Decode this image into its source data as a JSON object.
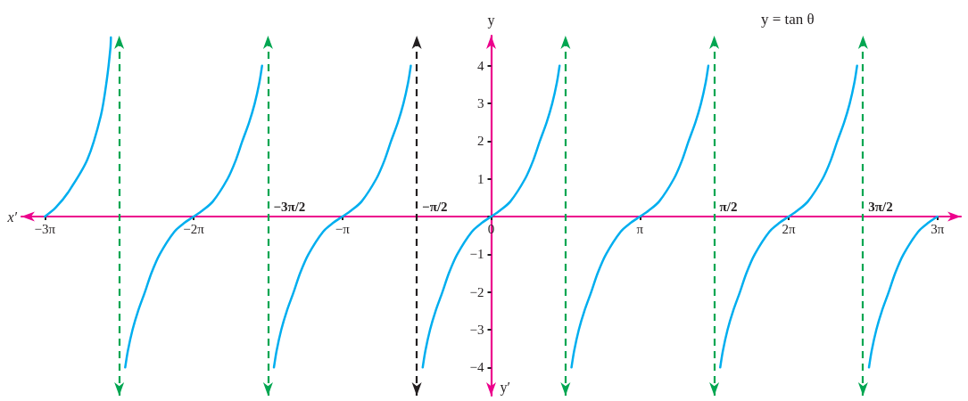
{
  "chart_data": {
    "type": "line",
    "title": "y = tan θ",
    "xlabel": "x′",
    "ylabel": "y",
    "annotations": [
      "y′"
    ],
    "xlim": [
      -9.92,
      9.92
    ],
    "ylim": [
      -4.75,
      4.8
    ],
    "xticks": [
      {
        "value": -9.425,
        "label": "−3π"
      },
      {
        "value": -6.283,
        "label": "−2π"
      },
      {
        "value": -3.142,
        "label": "−π"
      },
      {
        "value": 0,
        "label": "0"
      },
      {
        "value": 3.142,
        "label": "π"
      },
      {
        "value": 6.283,
        "label": "2π"
      },
      {
        "value": 9.425,
        "label": "3π"
      }
    ],
    "yticks": [
      {
        "value": -4,
        "label": "−4"
      },
      {
        "value": -3,
        "label": "−3"
      },
      {
        "value": -2,
        "label": "−2"
      },
      {
        "value": -1,
        "label": "−1"
      },
      {
        "value": 0,
        "label": null
      },
      1,
      2,
      3,
      4
    ],
    "grid": false,
    "marker": "none",
    "line_style": "solid",
    "ref_lines": [
      {
        "axis": "x",
        "value": -7.854,
        "color": "#00a651",
        "line_style": "dashed"
      },
      {
        "axis": "x",
        "value": -4.712,
        "label": "−3π/2",
        "color": "#00a651",
        "line_style": "dashed"
      },
      {
        "axis": "x",
        "value": -1.571,
        "label": "−π/2",
        "color": "#231f20",
        "line_style": "dashed"
      },
      {
        "axis": "x",
        "value": 1.571,
        "color": "#00a651",
        "line_style": "dashed"
      },
      {
        "axis": "x",
        "value": 4.712,
        "label": "π/2",
        "color": "#00a651",
        "line_style": "dashed"
      },
      {
        "axis": "x",
        "value": 7.854,
        "label": "3π/2",
        "color": "#00a651",
        "line_style": "dashed"
      }
    ],
    "series": [
      {
        "color": "#00aeef",
        "x": [
          -9.425,
          -9.195,
          -8.935,
          -8.531,
          -8.242,
          -8.116,
          -8.04,
          -8.03
        ],
        "values": [
          0,
          0.24,
          0.64,
          1.5,
          2.68,
          3.63,
          4.47,
          4.75
        ]
      },
      {
        "color": "#00aeef",
        "x": [
          -7.728,
          -7.672,
          -7.573,
          -7.455,
          -7.311,
          -7.175,
          -6.999,
          -6.689,
          -6.47,
          -6.283,
          -6.096,
          -5.877,
          -5.567,
          -5.391,
          -5.255,
          -5.111,
          -4.993,
          -4.894,
          -4.838
        ],
        "values": [
          -4,
          -3.56,
          -3,
          -2.5,
          -2,
          -1.5,
          -1,
          -0.4,
          -0.16,
          0,
          0.16,
          0.4,
          1,
          1.5,
          2,
          2.5,
          3,
          3.56,
          4
        ]
      },
      {
        "color": "#00aeef",
        "x": [
          -4.587,
          -4.531,
          -4.432,
          -4.314,
          -4.17,
          -4.034,
          -3.858,
          -3.548,
          -3.329,
          -3.142,
          -2.955,
          -2.736,
          -2.426,
          -2.25,
          -2.114,
          -1.97,
          -1.852,
          -1.753,
          -1.697
        ],
        "values": [
          -4,
          -3.56,
          -3,
          -2.5,
          -2,
          -1.5,
          -1,
          -0.4,
          -0.16,
          0,
          0.16,
          0.4,
          1,
          1.5,
          2,
          2.5,
          3,
          3.56,
          4
        ]
      },
      {
        "color": "#00aeef",
        "x": [
          -1.445,
          -1.389,
          -1.29,
          -1.172,
          -1.028,
          -0.892,
          -0.716,
          -0.406,
          -0.187,
          0,
          0.187,
          0.406,
          0.716,
          0.892,
          1.028,
          1.172,
          1.29,
          1.389,
          1.445
        ],
        "values": [
          -4,
          -3.56,
          -3,
          -2.5,
          -2,
          -1.5,
          -1,
          -0.4,
          -0.16,
          0,
          0.16,
          0.4,
          1,
          1.5,
          2,
          2.5,
          3,
          3.56,
          4
        ]
      },
      {
        "color": "#00aeef",
        "x": [
          1.697,
          1.753,
          1.852,
          1.97,
          2.114,
          2.25,
          2.426,
          2.736,
          2.955,
          3.142,
          3.329,
          3.548,
          3.858,
          4.034,
          4.17,
          4.314,
          4.432,
          4.531,
          4.587
        ],
        "values": [
          -4,
          -3.56,
          -3,
          -2.5,
          -2,
          -1.5,
          -1,
          -0.4,
          -0.16,
          0,
          0.16,
          0.4,
          1,
          1.5,
          2,
          2.5,
          3,
          3.56,
          4
        ]
      },
      {
        "color": "#00aeef",
        "x": [
          4.838,
          4.894,
          4.993,
          5.111,
          5.255,
          5.391,
          5.567,
          5.877,
          6.096,
          6.283,
          6.47,
          6.689,
          6.999,
          7.175,
          7.311,
          7.455,
          7.573,
          7.672,
          7.728
        ],
        "values": [
          -4,
          -3.56,
          -3,
          -2.5,
          -2,
          -1.5,
          -1,
          -0.4,
          -0.16,
          0,
          0.16,
          0.4,
          1,
          1.5,
          2,
          2.5,
          3,
          3.56,
          4
        ]
      },
      {
        "color": "#00aeef",
        "x": [
          7.98,
          8.036,
          8.135,
          8.253,
          8.397,
          8.533,
          8.709,
          9.019,
          9.238,
          9.425
        ],
        "values": [
          -4,
          -3.56,
          -3,
          -2.5,
          -2,
          -1.5,
          -1,
          -0.4,
          -0.16,
          0
        ]
      }
    ]
  }
}
